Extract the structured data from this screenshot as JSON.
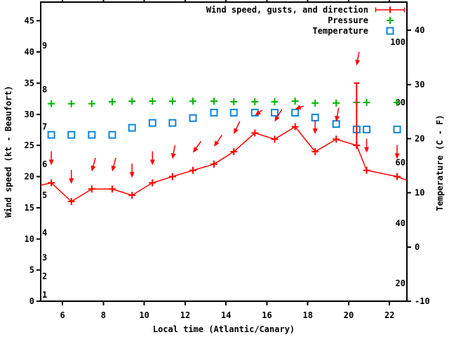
{
  "chart_data": {
    "type": "line",
    "title": "",
    "xlabel": "Local time (Atlantic/Canary)",
    "ylabel": "Wind speed (kt - Beaufort)",
    "y2label": "Temperature (C - F)",
    "legend_position": "top-right-inside",
    "grid": false,
    "xlim": [
      4.93,
      22.85
    ],
    "ylim": [
      0,
      48
    ],
    "y2lim": [
      -10,
      45.2
    ],
    "xticks": [
      6,
      8,
      10,
      12,
      14,
      16,
      18,
      20,
      22
    ],
    "yticks": [
      0,
      5,
      10,
      15,
      20,
      25,
      30,
      35,
      40,
      45
    ],
    "y2ticks": [
      -10,
      0,
      10,
      20,
      30,
      40
    ],
    "beaufort_labels": [
      {
        "label": "1",
        "kt": 1
      },
      {
        "label": "2",
        "kt": 4
      },
      {
        "label": "3",
        "kt": 7
      },
      {
        "label": "4",
        "kt": 11
      },
      {
        "label": "5",
        "kt": 17
      },
      {
        "label": "6",
        "kt": 22
      },
      {
        "label": "7",
        "kt": 28
      },
      {
        "label": "8",
        "kt": 34
      },
      {
        "label": "9",
        "kt": 41
      }
    ],
    "fahrenheit_labels": [
      {
        "label": "20",
        "c": -6.7
      },
      {
        "label": "40",
        "c": 4.4
      },
      {
        "label": "60",
        "c": 15.6
      },
      {
        "label": "80",
        "c": 26.7
      },
      {
        "label": "100",
        "c": 37.8
      }
    ],
    "legend": [
      {
        "label": "Wind speed, gusts, and direction",
        "series": "wind"
      },
      {
        "label": "Pressure",
        "series": "pressure"
      },
      {
        "label": "Temperature",
        "series": "temperature"
      }
    ],
    "colors": {
      "wind": "#ff0000",
      "pressure": "#00b400",
      "temperature": "#0b86e0"
    },
    "x": [
      5.45,
      6.43,
      7.43,
      8.43,
      9.4,
      10.4,
      11.38,
      12.38,
      13.41,
      14.38,
      15.41,
      16.38,
      17.38,
      18.36,
      19.39,
      20.39,
      20.88,
      22.37
    ],
    "series": [
      {
        "name": "wind_speed_kt",
        "axis": "y1",
        "values": [
          19,
          16,
          18,
          18,
          17,
          19,
          20,
          21,
          22,
          24,
          27,
          26,
          28,
          24,
          26,
          25,
          21,
          20
        ]
      },
      {
        "name": "gust_kt",
        "axis": "y1",
        "values": [
          null,
          null,
          null,
          null,
          null,
          null,
          null,
          null,
          null,
          null,
          null,
          null,
          null,
          null,
          null,
          35,
          null,
          null
        ]
      },
      {
        "name": "wind_dir_arrow_rotation_deg",
        "axis": "none",
        "values": [
          0,
          0,
          15,
          15,
          0,
          0,
          10,
          35,
          35,
          25,
          55,
          30,
          70,
          0,
          10,
          10,
          0,
          0
        ]
      },
      {
        "name": "pressure_level_plot_units",
        "axis": "unlabeled",
        "values": [
          31.7,
          31.7,
          31.7,
          32.0,
          32.1,
          32.1,
          32.1,
          32.1,
          32.1,
          32.0,
          32.0,
          32.0,
          32.1,
          31.8,
          31.8,
          31.9,
          31.9,
          31.9
        ]
      },
      {
        "name": "temperature_c",
        "axis": "y2",
        "values": [
          20.7,
          20.7,
          20.7,
          20.7,
          22.0,
          22.9,
          22.9,
          23.8,
          24.8,
          24.8,
          24.8,
          24.8,
          24.8,
          23.9,
          22.7,
          21.7,
          21.7,
          21.7
        ]
      }
    ],
    "wind_line_edge_points": {
      "left": [
        4.93,
        18.6
      ],
      "right": [
        22.85,
        19.4
      ]
    }
  }
}
